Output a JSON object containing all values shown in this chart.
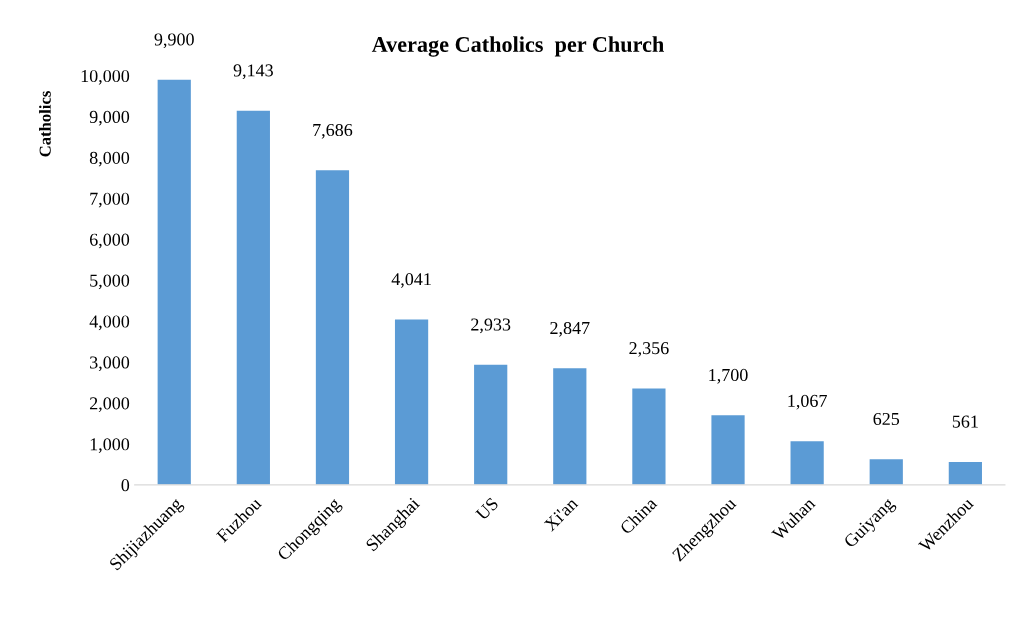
{
  "chart_data": {
    "type": "bar",
    "title": "Average Catholics  per Church",
    "ylabel": "Catholics",
    "categories": [
      "Shijiazhuang",
      "Fuzhou",
      "Chongqing",
      "Shanghai",
      "US",
      "Xi'an",
      "China",
      "Zhengzhou",
      "Wuhan",
      "Guiyang",
      "Wenzhou"
    ],
    "values": [
      9900,
      9143,
      7686,
      4041,
      2933,
      2847,
      2356,
      1700,
      1067,
      625,
      561
    ],
    "color": "#5b9bd5",
    "ylim": [
      0,
      10000
    ],
    "yticks": [
      {
        "value": 0,
        "label": "0"
      },
      {
        "value": 1000,
        "label": "1,000"
      },
      {
        "value": 2000,
        "label": "2,000"
      },
      {
        "value": 3000,
        "label": "3,000"
      },
      {
        "value": 4000,
        "label": "4,000"
      },
      {
        "value": 5000,
        "label": "5,000"
      },
      {
        "value": 6000,
        "label": "6,000"
      },
      {
        "value": 7000,
        "label": "7,000"
      },
      {
        "value": 8000,
        "label": "8,000"
      },
      {
        "value": 9000,
        "label": "9,000"
      },
      {
        "value": 10000,
        "label": "10,000"
      }
    ],
    "value_labels": [
      "9,900",
      "9,143",
      "7,686",
      "4,041",
      "2,933",
      "2,847",
      "2,356",
      "1,700",
      "1,067",
      "625",
      "561"
    ],
    "grid": false,
    "legend": false
  }
}
